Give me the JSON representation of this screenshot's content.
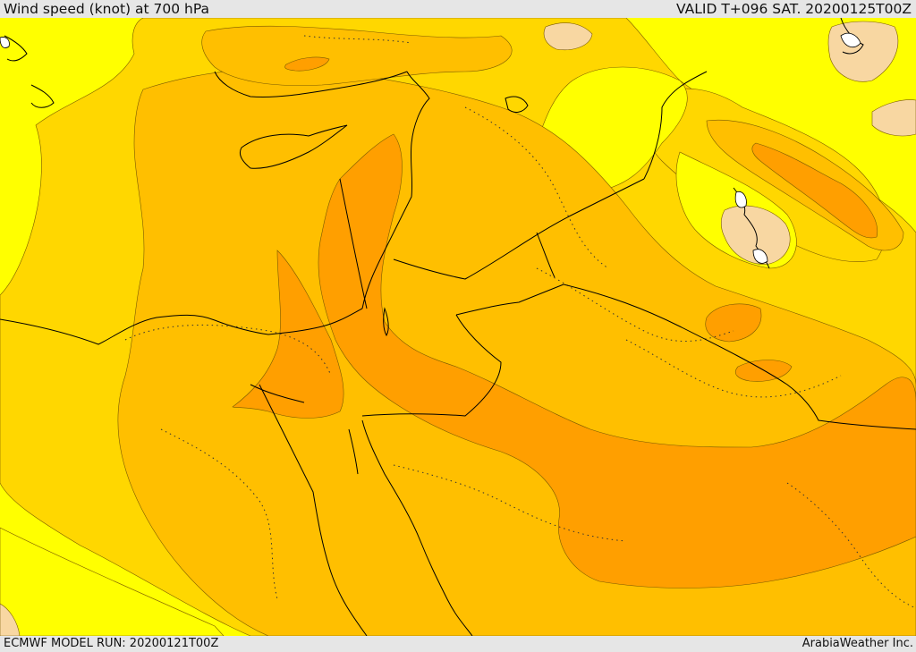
{
  "header": {
    "title": "Wind speed (knot) at 700 hPa",
    "valid": "VALID T+096 SAT. 20200125T00Z"
  },
  "footer": {
    "model_run": "ECMWF MODEL RUN: 20200121T00Z",
    "credit": "ArabiaWeather Inc."
  },
  "colors": {
    "level_1": "#ffff00",
    "level_2": "#ffd700",
    "level_3": "#ffbf00",
    "level_4": "#ff9f00",
    "level_5": "#f8d7a2",
    "coast": "#000000",
    "background": "#e6e6e6"
  }
}
